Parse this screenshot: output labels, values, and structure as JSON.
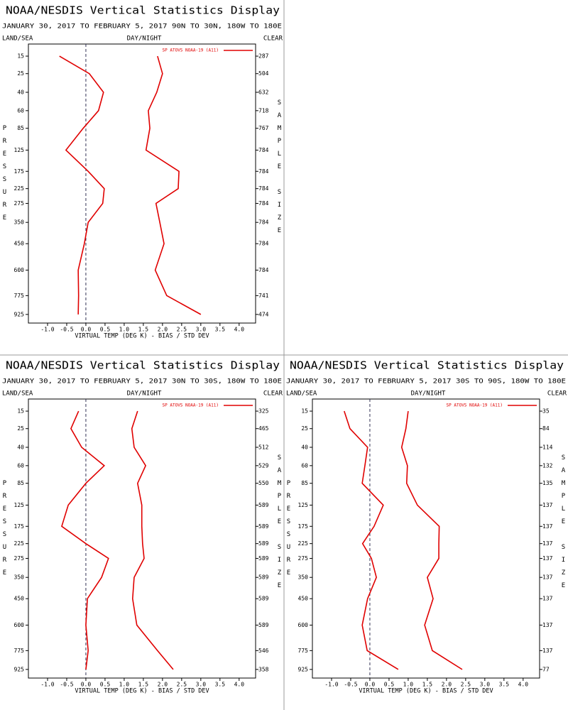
{
  "chart_data": [
    {
      "type": "line",
      "title": "NOAA/NESDIS Vertical Statistics Display",
      "subtitle": "JANUARY 30, 2017 TO FEBRUARY 5, 2017  90N TO 30N, 180W TO 180E",
      "left_label": "LAND/SEA",
      "center_label": "DAY/NIGHT",
      "right_label": "CLEAR",
      "xlabel": "VIRTUAL TEMP (DEG K) - BIAS / STD DEV",
      "ylabel": "PRESSURE",
      "y2label": "SAMPLE SIZE",
      "legend": "upper right",
      "xlim": [
        -1.5,
        4.43
      ],
      "xticks": [
        {
          "value": -1,
          "label": "-1.0"
        },
        -0.5,
        {
          "value": 0,
          "label": "0.0"
        },
        0.5,
        {
          "value": 1,
          "label": "1.0"
        },
        1.5,
        {
          "value": 2,
          "label": "2.0"
        },
        2.5,
        {
          "value": 3,
          "label": "3.0"
        },
        3.5,
        {
          "value": 4,
          "label": "4.0"
        }
      ],
      "ylim": [
        1000,
        10
      ],
      "yticks": [
        15,
        25,
        40,
        60,
        85,
        125,
        175,
        225,
        275,
        350,
        450,
        600,
        775,
        925
      ],
      "y": [
        15,
        25,
        40,
        60,
        85,
        125,
        175,
        225,
        275,
        350,
        450,
        600,
        775,
        925
      ],
      "sample_size": [
        287,
        504,
        632,
        718,
        767,
        784,
        784,
        784,
        784,
        784,
        784,
        784,
        741,
        474
      ],
      "series": [
        {
          "name": "SP ATOVS NOAA-19 (A11)",
          "color": "#e00000",
          "bias": [
            -0.69,
            0.09,
            0.46,
            0.33,
            -0.07,
            -0.52,
            0.06,
            0.48,
            0.44,
            0.06,
            -0.04,
            -0.2,
            -0.19,
            -0.2
          ],
          "std_dev": [
            1.87,
            2.0,
            1.85,
            1.63,
            1.67,
            1.57,
            2.43,
            2.41,
            1.83,
            1.93,
            2.04,
            1.81,
            2.11,
            3.0
          ]
        }
      ]
    },
    {
      "type": "line",
      "title": "NOAA/NESDIS Vertical Statistics Display",
      "subtitle": "JANUARY 30, 2017 TO FEBRUARY 5, 2017  30N TO 30S, 180W TO 180E",
      "left_label": "LAND/SEA",
      "center_label": "DAY/NIGHT",
      "right_label": "CLEAR",
      "xlabel": "VIRTUAL TEMP (DEG K) - BIAS / STD DEV",
      "ylabel": "PRESSURE",
      "y2label": "SAMPLE SIZE",
      "legend": "upper right",
      "xlim": [
        -1.5,
        4.43
      ],
      "xticks": [
        {
          "value": -1,
          "label": "-1.0"
        },
        -0.5,
        {
          "value": 0,
          "label": "0.0"
        },
        0.5,
        {
          "value": 1,
          "label": "1.0"
        },
        1.5,
        {
          "value": 2,
          "label": "2.0"
        },
        2.5,
        {
          "value": 3,
          "label": "3.0"
        },
        3.5,
        {
          "value": 4,
          "label": "4.0"
        }
      ],
      "ylim": [
        1000,
        10
      ],
      "yticks": [
        15,
        25,
        40,
        60,
        85,
        125,
        175,
        225,
        275,
        350,
        450,
        600,
        775,
        925
      ],
      "y": [
        15,
        25,
        40,
        60,
        85,
        125,
        175,
        225,
        275,
        350,
        450,
        600,
        775,
        925
      ],
      "sample_size": [
        325,
        465,
        512,
        529,
        550,
        589,
        589,
        589,
        589,
        589,
        589,
        589,
        546,
        358
      ],
      "series": [
        {
          "name": "SP ATOVS NOAA-19 (A11)",
          "color": "#e00000",
          "bias": [
            -0.19,
            -0.39,
            -0.11,
            0.48,
            0,
            -0.46,
            -0.63,
            0,
            0.59,
            0.41,
            0.04,
            0,
            0.06,
            0
          ],
          "std_dev": [
            1.35,
            1.2,
            1.26,
            1.56,
            1.35,
            1.46,
            1.46,
            1.48,
            1.52,
            1.26,
            1.22,
            1.33,
            1.87,
            2.28
          ]
        }
      ]
    },
    {
      "type": "line",
      "title": "NOAA/NESDIS Vertical Statistics Display",
      "subtitle": "JANUARY 30, 2017 TO FEBRUARY 5, 2017  30S TO 90S, 180W TO 180E",
      "left_label": "LAND/SEA",
      "center_label": "DAY/NIGHT",
      "right_label": "CLEAR",
      "xlabel": "VIRTUAL TEMP (DEG K) - BIAS / STD DEV",
      "ylabel": "PRESSURE",
      "y2label": "SAMPLE SIZE",
      "legend": "upper right",
      "xlim": [
        -1.5,
        4.43
      ],
      "xticks": [
        {
          "value": -1,
          "label": "-1.0"
        },
        -0.5,
        {
          "value": 0,
          "label": "0.0"
        },
        0.5,
        {
          "value": 1,
          "label": "1.0"
        },
        1.5,
        {
          "value": 2,
          "label": "2.0"
        },
        2.5,
        {
          "value": 3,
          "label": "3.0"
        },
        3.5,
        {
          "value": 4,
          "label": "4.0"
        }
      ],
      "ylim": [
        1000,
        10
      ],
      "yticks": [
        15,
        25,
        40,
        60,
        85,
        125,
        175,
        225,
        275,
        350,
        450,
        600,
        775,
        925
      ],
      "y": [
        15,
        25,
        40,
        60,
        85,
        125,
        175,
        225,
        275,
        350,
        450,
        600,
        775,
        925
      ],
      "sample_size": [
        35,
        84,
        114,
        132,
        135,
        137,
        137,
        137,
        137,
        137,
        137,
        137,
        137,
        77
      ],
      "series": [
        {
          "name": "SP ATOVS NOAA-19 (A11)",
          "color": "#e00000",
          "bias": [
            -0.67,
            -0.52,
            -0.06,
            -0.13,
            -0.2,
            0.35,
            0.11,
            -0.19,
            0.04,
            0.17,
            -0.06,
            -0.2,
            -0.07,
            0.74
          ],
          "std_dev": [
            1.0,
            0.94,
            0.83,
            0.98,
            0.96,
            1.24,
            1.81,
            1.8,
            1.8,
            1.5,
            1.65,
            1.43,
            1.63,
            2.41
          ]
        }
      ]
    }
  ]
}
